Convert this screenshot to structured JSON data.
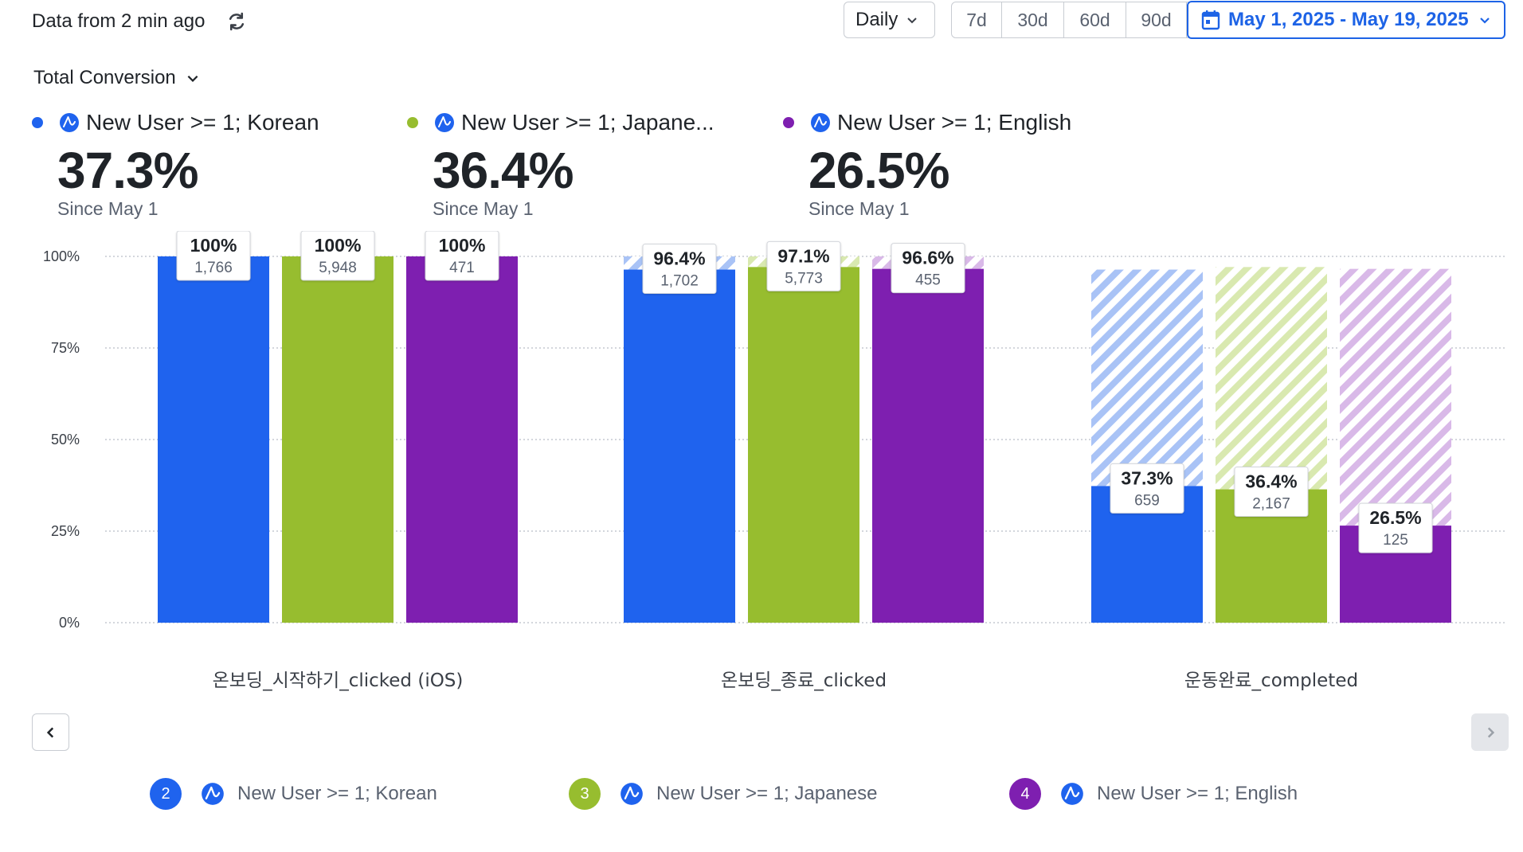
{
  "header": {
    "freshness_text": "Data from 2 min ago",
    "refresh_icon": "refresh-icon",
    "interval_label": "Daily",
    "range_buttons": [
      "7d",
      "30d",
      "60d",
      "90d"
    ],
    "date_range_label": "May 1, 2025 - May 19, 2025",
    "accent_color": "#1d63e6"
  },
  "metric": {
    "label": "Total Conversion"
  },
  "segments": [
    {
      "name": "New User >= 1; Korean",
      "short_name": "New User >= 1; Korean",
      "color": "#1f63ee",
      "light_color": "#a9c3f6",
      "total": "37.3%",
      "since": "Since May 1",
      "index": "2"
    },
    {
      "name": "New User >= 1; Japanese",
      "short_name": "New User >= 1; Japane...",
      "color": "#97bd2f",
      "light_color": "#d9e9b0",
      "total": "36.4%",
      "since": "Since May 1",
      "index": "3"
    },
    {
      "name": "New User >= 1; English",
      "short_name": "New User >= 1; English",
      "color": "#7e1fb0",
      "light_color": "#d9b9e8",
      "total": "26.5%",
      "since": "Since May 1",
      "index": "4"
    }
  ],
  "chart_data": {
    "type": "bar",
    "categories": [
      "온보딩_시작하기_clicked (iOS)",
      "온보딩_종료_clicked",
      "운동완료_completed"
    ],
    "yticks": [
      "0%",
      "25%",
      "50%",
      "75%",
      "100%"
    ],
    "ylim": [
      0,
      100
    ],
    "grid": true,
    "series": [
      {
        "name": "New User >= 1; Korean",
        "values": [
          100,
          96.4,
          37.3
        ],
        "previous_step": [
          100,
          100,
          96.4
        ],
        "labels": [
          "100%",
          "96.4%",
          "37.3%"
        ],
        "counts": [
          "1,766",
          "1,702",
          "659"
        ]
      },
      {
        "name": "New User >= 1; Japanese",
        "values": [
          100,
          97.1,
          36.4
        ],
        "previous_step": [
          100,
          100,
          97.1
        ],
        "labels": [
          "100%",
          "97.1%",
          "36.4%"
        ],
        "counts": [
          "5,948",
          "5,773",
          "2,167"
        ]
      },
      {
        "name": "New User >= 1; English",
        "values": [
          100,
          96.6,
          26.5
        ],
        "previous_step": [
          100,
          100,
          96.6
        ],
        "labels": [
          "100%",
          "96.6%",
          "26.5%"
        ],
        "counts": [
          "471",
          "455",
          "125"
        ]
      }
    ]
  }
}
